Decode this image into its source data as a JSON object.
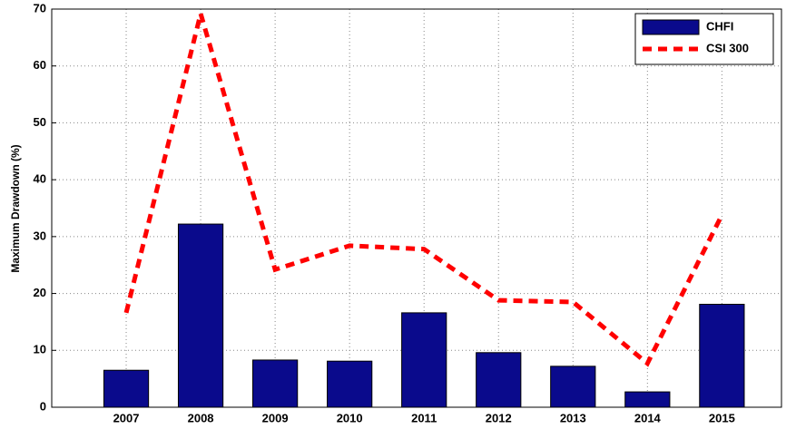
{
  "chart_data": {
    "type": "bar",
    "ylabel": "Maximum Drawdown (%)",
    "categories": [
      "2007",
      "2008",
      "2009",
      "2010",
      "2011",
      "2012",
      "2013",
      "2014",
      "2015"
    ],
    "series": [
      {
        "name": "CHFI",
        "type": "bar",
        "color": "#0a0a8c",
        "values": [
          6.5,
          32.2,
          8.3,
          8.1,
          16.6,
          9.6,
          7.2,
          2.7,
          18.1
        ]
      },
      {
        "name": "CSI 300",
        "type": "line",
        "color": "#ff0000",
        "values": [
          16.6,
          69.2,
          24.2,
          28.4,
          27.8,
          18.8,
          18.5,
          7.7,
          33.8
        ]
      }
    ],
    "ylim": [
      0,
      70
    ],
    "yticks": [
      0,
      10,
      20,
      30,
      40,
      50,
      60,
      70
    ],
    "grid": true,
    "legend": "upper right"
  }
}
